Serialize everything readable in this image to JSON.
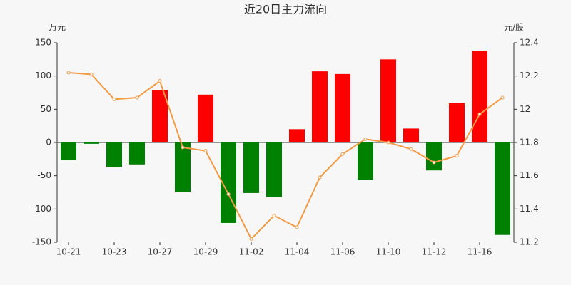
{
  "chart_data": {
    "type": "bar-line",
    "title": "近20日主力流向",
    "y_label": "万元",
    "y2_label": "元/股",
    "categories": [
      "10-21",
      null,
      "10-23",
      null,
      "10-27",
      null,
      "10-29",
      null,
      "11-02",
      null,
      "11-04",
      null,
      "11-06",
      null,
      "11-10",
      null,
      "11-12",
      null,
      "11-16",
      null
    ],
    "series": [
      {
        "type": "bar",
        "color": "#ff0000",
        "negative_color": "#008000",
        "values": [
          -26,
          -2,
          -37.5,
          -33,
          79,
          -75,
          72,
          -121,
          -76,
          -82,
          20,
          107,
          103,
          -56,
          125,
          21,
          -42,
          59,
          138,
          -139
        ]
      },
      {
        "type": "line",
        "axis": "y2",
        "color": "#f39a43",
        "values": [
          12.22,
          12.21,
          12.06,
          12.07,
          12.17,
          11.77,
          11.75,
          11.49,
          11.22,
          11.36,
          11.29,
          11.59,
          11.73,
          11.82,
          11.8,
          11.76,
          11.68,
          11.72,
          11.97,
          12.07
        ]
      }
    ],
    "ylim": [
      -150,
      150
    ],
    "yticks": [
      -150,
      -100,
      -50,
      0,
      50,
      100,
      150
    ],
    "y2lim": [
      11.2,
      12.4
    ],
    "y2ticks": [
      11.2,
      11.4,
      11.6,
      11.8,
      12,
      12.2,
      12.4
    ],
    "grid": false
  }
}
